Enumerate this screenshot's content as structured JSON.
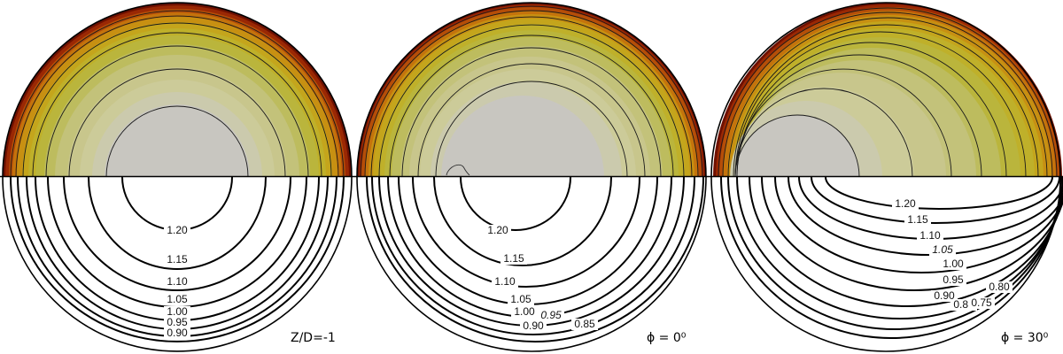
{
  "palette": [
    "#c8c6c0",
    "#cbcaad",
    "#cccb99",
    "#c8c68c",
    "#c3c27a",
    "#bdbc5e",
    "#bab53c",
    "#bfb02a",
    "#c4a51c",
    "#c79012",
    "#c4730c",
    "#b54e08",
    "#9a2804",
    "#6e1000"
  ],
  "panels": [
    {
      "id": "z-d",
      "caption": "Z/D=-1",
      "lower_labels": [
        {
          "text": "1.20",
          "italic": false
        },
        {
          "text": "1.15",
          "italic": false
        },
        {
          "text": "1.10",
          "italic": false
        },
        {
          "text": "1.05",
          "italic": false
        },
        {
          "text": "1.00",
          "italic": false
        },
        {
          "text": "0.95",
          "italic": false
        },
        {
          "text": "0.90",
          "italic": false
        }
      ]
    },
    {
      "id": "phi-0",
      "caption": "ϕ = 0⁰",
      "lower_labels": [
        {
          "text": "1.20",
          "italic": false
        },
        {
          "text": "1.15",
          "italic": false
        },
        {
          "text": "1.10",
          "italic": false
        },
        {
          "text": "1.05",
          "italic": false
        },
        {
          "text": "1.00",
          "italic": false
        },
        {
          "text": "0.95",
          "italic": true
        },
        {
          "text": "0.90",
          "italic": false
        },
        {
          "text": "0.85",
          "italic": false
        }
      ]
    },
    {
      "id": "phi-30",
      "caption": "ϕ = 30⁰",
      "lower_labels": [
        {
          "text": "1.20",
          "italic": false
        },
        {
          "text": "1.15",
          "italic": false
        },
        {
          "text": "1.10",
          "italic": false
        },
        {
          "text": "1.05",
          "italic": true
        },
        {
          "text": "1.00",
          "italic": false
        },
        {
          "text": "0.95",
          "italic": false
        },
        {
          "text": "0.90",
          "italic": false
        },
        {
          "text": "0.85",
          "italic": false
        },
        {
          "text": "0.80",
          "italic": false
        },
        {
          "text": "0.75",
          "italic": false
        }
      ]
    }
  ]
}
